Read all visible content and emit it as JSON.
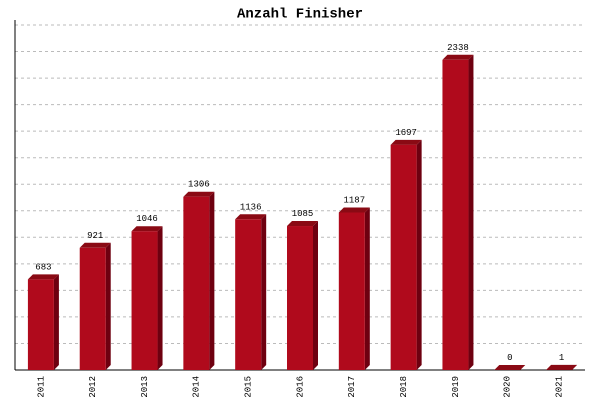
{
  "chart_data": {
    "type": "bar",
    "title": "Anzahl Finisher",
    "categories": [
      "2011",
      "2012",
      "2013",
      "2014",
      "2015",
      "2016",
      "2017",
      "2018",
      "2019",
      "2020",
      "2021"
    ],
    "values": [
      683,
      921,
      1046,
      1306,
      1136,
      1085,
      1187,
      1697,
      2338,
      0,
      1
    ],
    "color": "#b00a1c",
    "ylim": [
      0,
      2600
    ],
    "yticks": [
      0,
      200,
      400,
      600,
      800,
      1000,
      1200,
      1400,
      1600,
      1800,
      2000,
      2200,
      2400,
      2600
    ],
    "grid": true,
    "tick_labels": false
  }
}
